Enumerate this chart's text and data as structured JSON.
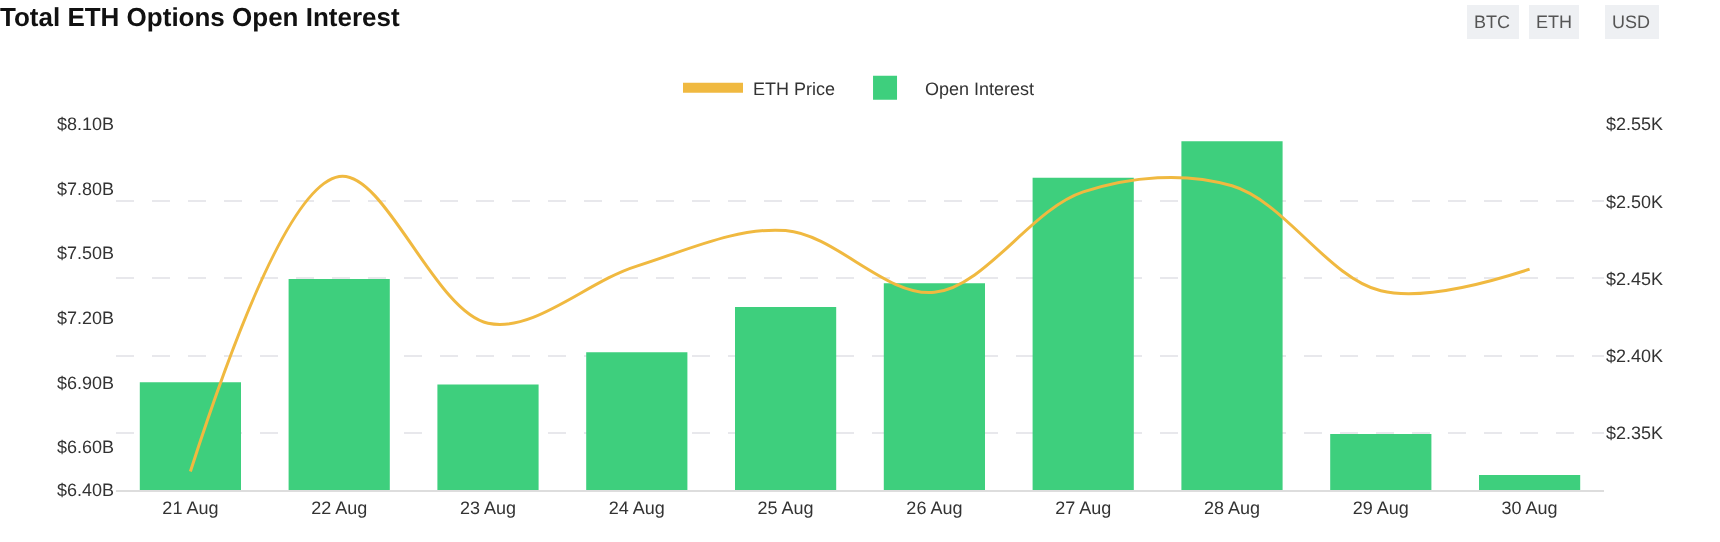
{
  "chart_data": {
    "type": "bar",
    "title": "Total ETH Options Open Interest",
    "categories": [
      "21 Aug",
      "22 Aug",
      "23 Aug",
      "24 Aug",
      "25 Aug",
      "26 Aug",
      "27 Aug",
      "28 Aug",
      "29 Aug",
      "30 Aug"
    ],
    "series": [
      {
        "name": "ETH Price",
        "type": "line",
        "axis": "y2",
        "color": "#f0b940",
        "values": [
          2.325,
          2.516,
          2.421,
          2.458,
          2.481,
          2.441,
          2.506,
          2.51,
          2.442,
          2.456
        ]
      },
      {
        "name": "Open Interest",
        "color": "#3ecf7d",
        "values": [
          6.9,
          7.38,
          6.89,
          7.04,
          7.25,
          7.36,
          7.85,
          8.02,
          6.66,
          6.47
        ]
      }
    ],
    "ylim": [
      6.4,
      8.1
    ],
    "yticks": [
      {
        "value": 8.1,
        "label": "$8.10B"
      },
      {
        "value": 7.8,
        "label": "$7.80B"
      },
      {
        "value": 7.5,
        "label": "$7.50B"
      },
      {
        "value": 7.2,
        "label": "$7.20B"
      },
      {
        "value": 6.9,
        "label": "$6.90B"
      },
      {
        "value": 6.6,
        "label": "$6.60B"
      },
      {
        "value": 6.4,
        "label": "$6.40B"
      }
    ],
    "y2lim": [
      2.313,
      2.55
    ],
    "y2ticks": [
      {
        "value": 2.55,
        "label": "$2.55K"
      },
      {
        "value": 2.5,
        "label": "$2.50K"
      },
      {
        "value": 2.45,
        "label": "$2.45K"
      },
      {
        "value": 2.4,
        "label": "$2.40K"
      },
      {
        "value": 2.35,
        "label": "$2.35K"
      }
    ],
    "grid": true,
    "legend": "top",
    "marker": "none",
    "annotations": [
      "BTC",
      "ETH",
      "USD"
    ]
  }
}
